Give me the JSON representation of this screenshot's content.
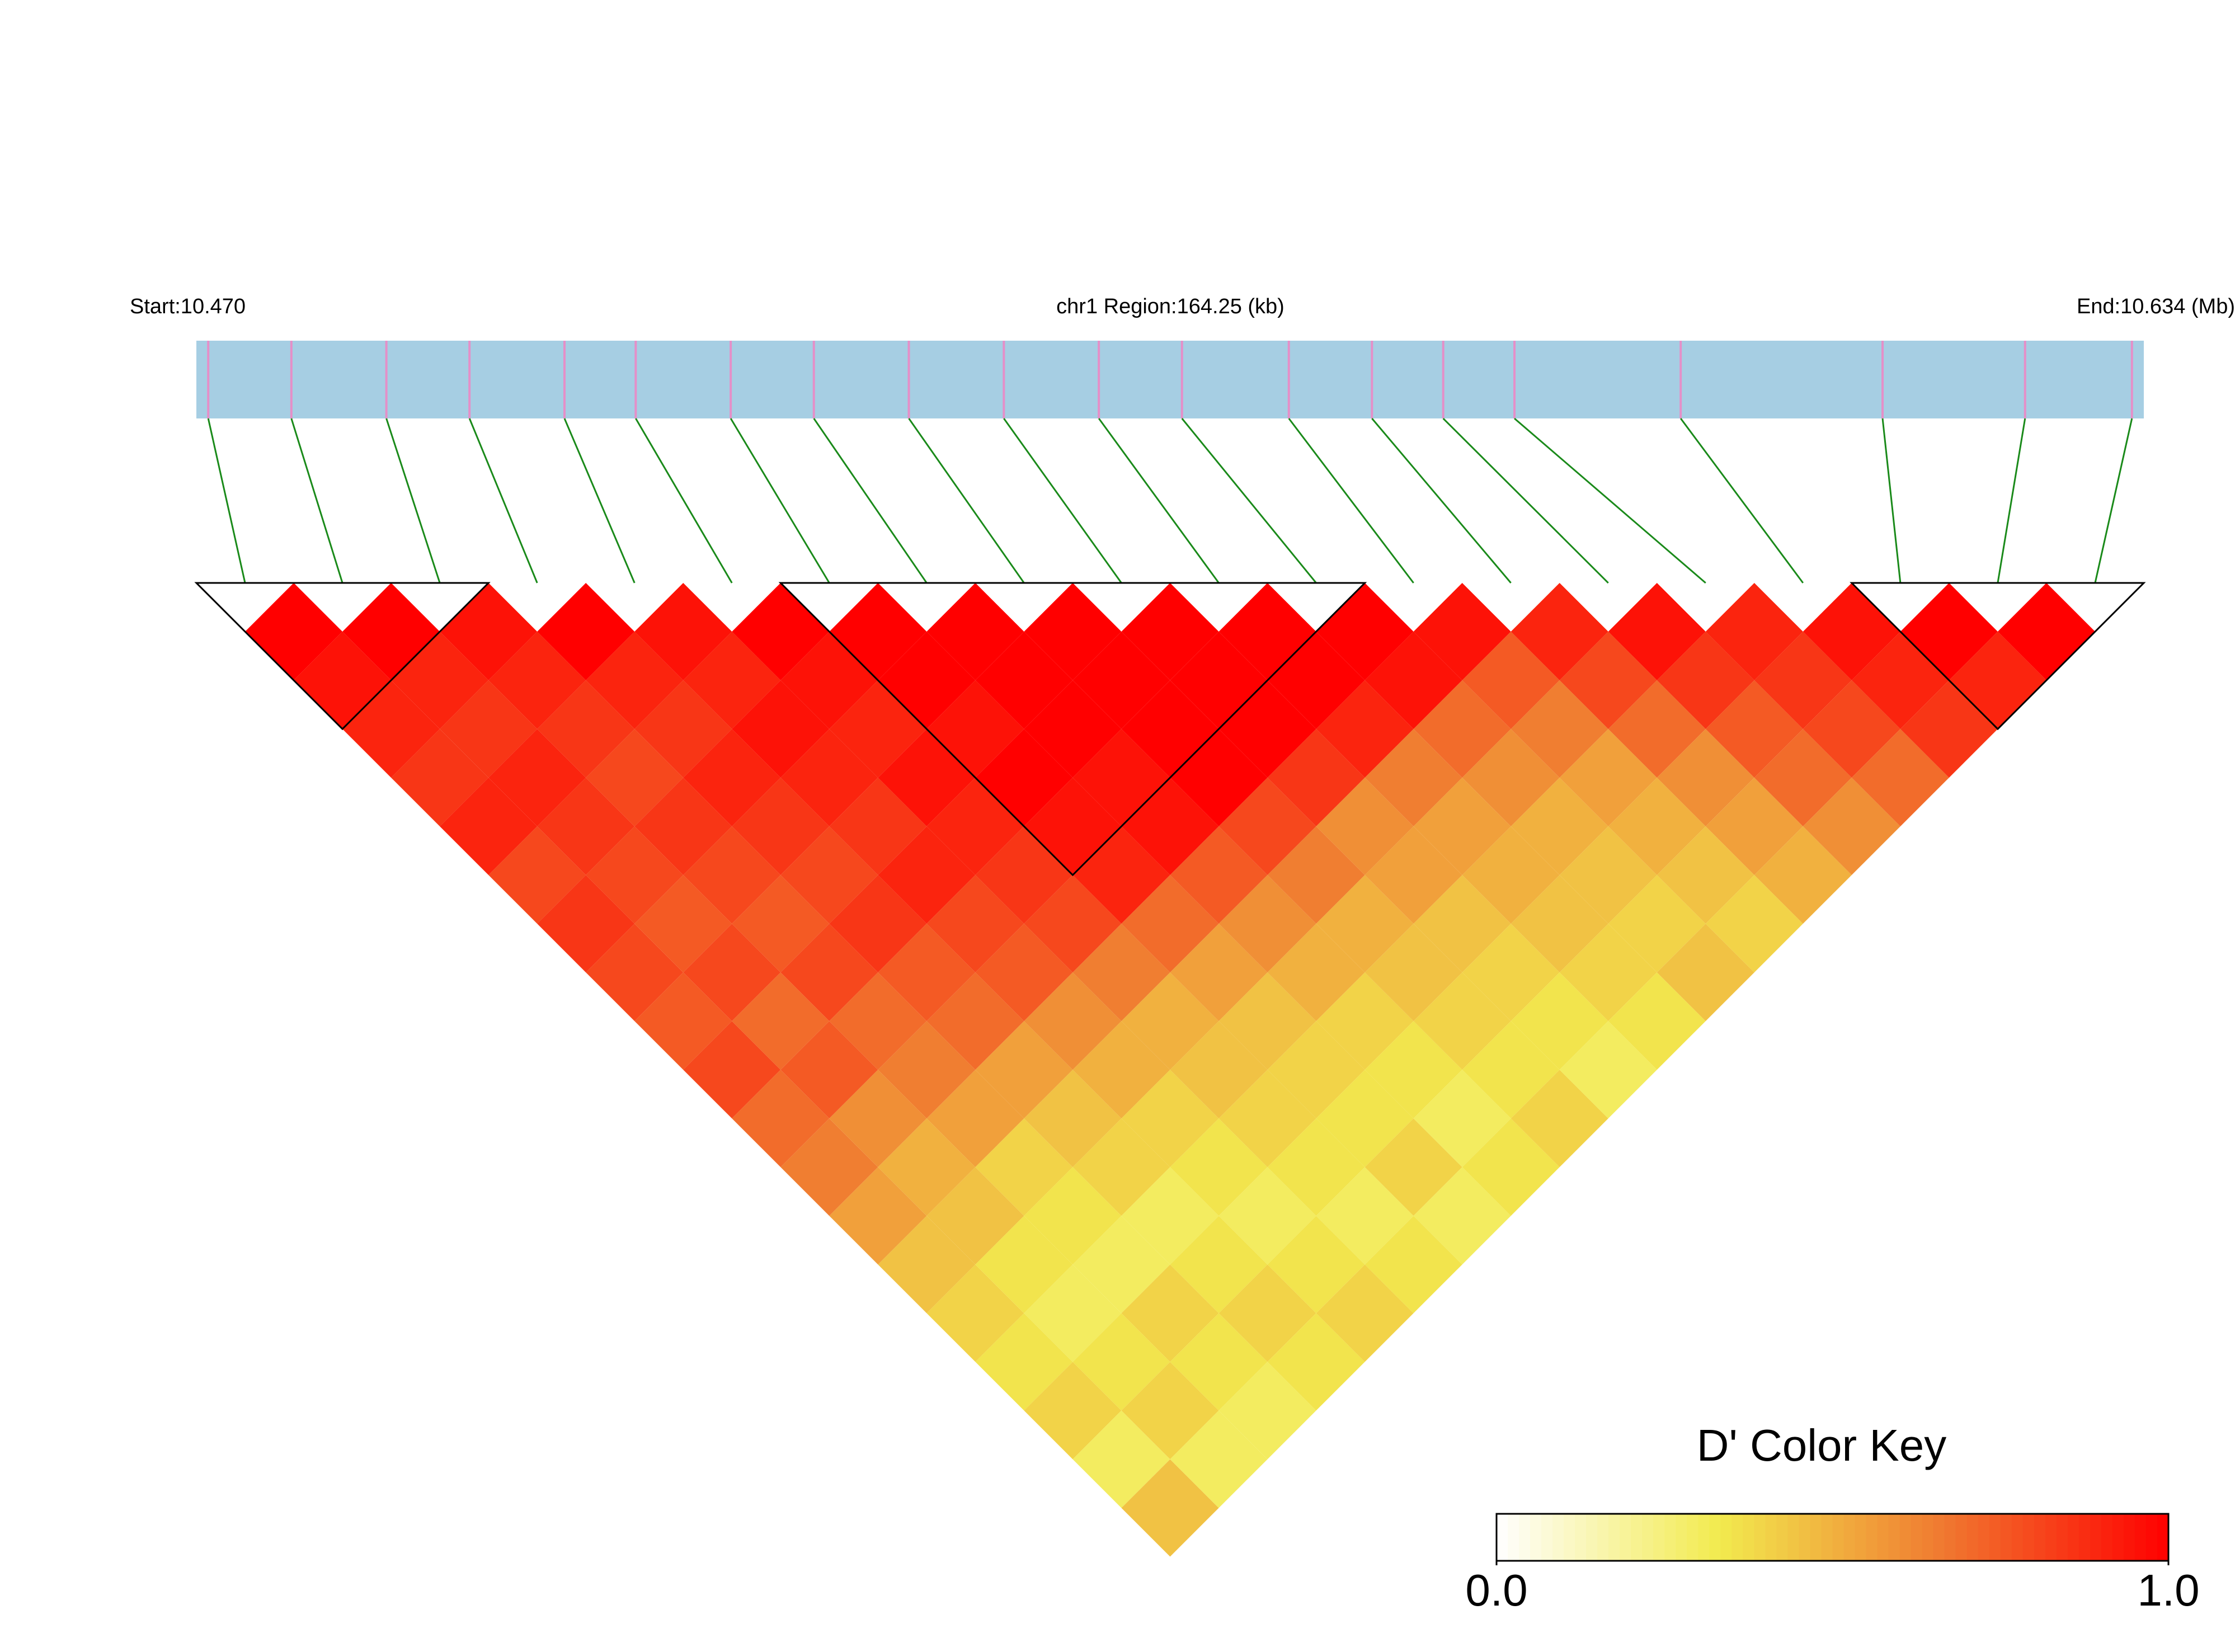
{
  "chart_data": {
    "type": "ld-heatmap",
    "start_label": "Start:10.470",
    "region_label": "chr1 Region:164.25 (kb)",
    "end_label": "End:10.634 (Mb)",
    "xlim": [
      10.47,
      10.634
    ],
    "positions": [
      10.471,
      10.478,
      10.486,
      10.493,
      10.501,
      10.507,
      10.515,
      10.522,
      10.53,
      10.538,
      10.546,
      10.553,
      10.562,
      10.569,
      10.575,
      10.581,
      10.595,
      10.612,
      10.624,
      10.633
    ],
    "ld": [
      [
        1,
        0.95,
        0.9,
        0.85,
        0.9,
        0.8,
        0.85,
        0.8,
        0.75,
        0.8,
        0.7,
        0.65,
        0.55,
        0.45,
        0.4,
        0.35,
        0.4,
        0.3,
        0.45
      ],
      [
        1,
        0.9,
        0.85,
        0.9,
        0.85,
        0.8,
        0.75,
        0.8,
        0.7,
        0.75,
        0.6,
        0.5,
        0.45,
        0.35,
        0.3,
        0.35,
        0.4,
        0.3
      ],
      [
        0.95,
        0.9,
        0.85,
        0.8,
        0.85,
        0.8,
        0.75,
        0.8,
        0.7,
        0.65,
        0.55,
        0.4,
        0.35,
        0.3,
        0.4,
        0.35,
        0.3
      ],
      [
        1,
        0.9,
        0.85,
        0.9,
        0.85,
        0.8,
        0.85,
        0.75,
        0.7,
        0.55,
        0.45,
        0.4,
        0.3,
        0.35,
        0.4,
        0.35
      ],
      [
        0.95,
        0.9,
        0.95,
        0.9,
        0.85,
        0.9,
        0.8,
        0.75,
        0.6,
        0.5,
        0.4,
        0.35,
        0.3,
        0.35,
        0.4
      ],
      [
        1,
        0.95,
        0.9,
        0.95,
        0.9,
        0.85,
        0.8,
        0.65,
        0.5,
        0.45,
        0.4,
        0.35,
        0.3,
        0.35
      ],
      [
        1,
        1,
        0.95,
        1,
        0.95,
        0.9,
        0.7,
        0.55,
        0.45,
        0.4,
        0.35,
        0.4,
        0.3
      ],
      [
        1,
        1,
        1,
        0.95,
        0.95,
        0.75,
        0.6,
        0.5,
        0.4,
        0.35,
        0.3,
        0.35
      ],
      [
        1,
        1,
        1,
        1,
        0.8,
        0.65,
        0.5,
        0.45,
        0.4,
        0.35,
        0.4
      ],
      [
        1,
        1,
        1,
        0.85,
        0.6,
        0.55,
        0.45,
        0.4,
        0.35,
        0.3
      ],
      [
        1,
        1,
        0.9,
        0.65,
        0.55,
        0.5,
        0.45,
        0.4,
        0.35
      ],
      [
        1,
        0.95,
        0.7,
        0.6,
        0.5,
        0.45,
        0.4,
        0.45
      ],
      [
        0.95,
        0.75,
        0.65,
        0.55,
        0.5,
        0.45,
        0.4
      ],
      [
        0.9,
        0.8,
        0.7,
        0.6,
        0.55,
        0.5
      ],
      [
        0.95,
        0.85,
        0.75,
        0.7,
        0.6
      ],
      [
        0.9,
        0.85,
        0.8,
        0.7
      ],
      [
        0.95,
        0.9,
        0.85
      ],
      [
        1,
        0.9
      ],
      [
        1
      ]
    ],
    "blocks": [
      [
        0,
        2
      ],
      [
        6,
        11
      ],
      [
        17,
        19
      ]
    ],
    "colormap": [
      "#ffffff",
      "#f2ea4e",
      "#f07830",
      "#ff0000"
    ],
    "key_title": "D' Color Key",
    "key_lim": [
      0,
      1
    ],
    "key_ticks": [
      {
        "value": 0,
        "label": "0.0"
      },
      {
        "value": 1,
        "label": "1.0"
      }
    ]
  }
}
